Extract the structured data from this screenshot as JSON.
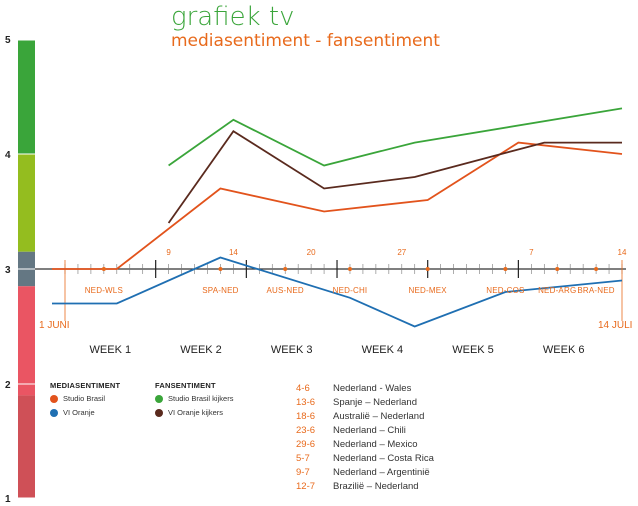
{
  "title": "grafiek tv",
  "subtitle": "mediasentiment - fansentiment",
  "chart_data": {
    "type": "line",
    "title": "grafiek tv",
    "subtitle": "mediasentiment - fansentiment",
    "y_scale_labels": [
      "5",
      "4",
      "3",
      "2",
      "1"
    ],
    "ylim": [
      1,
      5
    ],
    "x_range_days": [
      0,
      43
    ],
    "start_label": "1 JUNI",
    "end_label": "14 JULI",
    "weeks": [
      "WEEK 1",
      "WEEK 2",
      "WEEK 3",
      "WEEK 4",
      "WEEK 5",
      "WEEK 6"
    ],
    "match_dates": [
      {
        "label": "9",
        "day": 8
      },
      {
        "label": "14",
        "day": 13
      },
      {
        "label": "20",
        "day": 19
      },
      {
        "label": "27",
        "day": 26
      },
      {
        "label": "7",
        "day": 36
      },
      {
        "label": "14",
        "day": 43
      }
    ],
    "match_markers": [
      {
        "label": "NED-WLS",
        "day": 3
      },
      {
        "label": "SPA-NED",
        "day": 12
      },
      {
        "label": "AUS-NED",
        "day": 17
      },
      {
        "label": "NED-CHI",
        "day": 22
      },
      {
        "label": "NED-MEX",
        "day": 28
      },
      {
        "label": "NED-COS",
        "day": 34
      },
      {
        "label": "NED-ARG",
        "day": 38
      },
      {
        "label": "BRA-NED",
        "day": 41
      }
    ],
    "series": [
      {
        "name": "Studio Brasil",
        "group": "mediasentiment",
        "color": "#e2531c",
        "points": [
          [
            -1,
            3.0
          ],
          [
            4,
            3.0
          ],
          [
            12,
            3.7
          ],
          [
            20,
            3.5
          ],
          [
            28,
            3.6
          ],
          [
            35,
            4.1
          ],
          [
            43,
            4.0
          ]
        ]
      },
      {
        "name": "VI Oranje",
        "group": "mediasentiment",
        "color": "#1f6fb2",
        "points": [
          [
            -1,
            2.7
          ],
          [
            4,
            2.7
          ],
          [
            12,
            3.1
          ],
          [
            22,
            2.75
          ],
          [
            27,
            2.5
          ],
          [
            34,
            2.8
          ],
          [
            43,
            2.9
          ]
        ]
      },
      {
        "name": "Studio Brasil kijkers",
        "group": "fansentiment",
        "color": "#3aa53a",
        "points": [
          [
            8,
            3.9
          ],
          [
            13,
            4.3
          ],
          [
            20,
            3.9
          ],
          [
            27,
            4.1
          ],
          [
            43,
            4.4
          ]
        ]
      },
      {
        "name": "VI Oranje kijkers",
        "group": "fansentiment",
        "color": "#5a2a1e",
        "points": [
          [
            8,
            3.4
          ],
          [
            13,
            4.2
          ],
          [
            20,
            3.7
          ],
          [
            27,
            3.8
          ],
          [
            37,
            4.1
          ],
          [
            43,
            4.1
          ]
        ]
      }
    ],
    "scale_bar_colors": [
      "#3aa53a",
      "#94bd1f",
      "#647783",
      "#ea5563",
      "#cf5057"
    ]
  },
  "legend": {
    "media_title": "MEDIASENTIMENT",
    "fans_title": "FANSENTIMENT",
    "media": [
      {
        "label": "Studio Brasil",
        "color": "#e2531c"
      },
      {
        "label": "VI Oranje",
        "color": "#1f6fb2"
      }
    ],
    "fans": [
      {
        "label": "Studio Brasil kijkers",
        "color": "#3aa53a"
      },
      {
        "label": "VI Oranje kijkers",
        "color": "#5a2a1e"
      }
    ]
  },
  "matches": [
    {
      "date": "4-6",
      "label": "Nederland - Wales"
    },
    {
      "date": "13-6",
      "label": "Spanje – Nederland"
    },
    {
      "date": "18-6",
      "label": "Australië – Nederland"
    },
    {
      "date": "23-6",
      "label": "Nederland – Chili"
    },
    {
      "date": "29-6",
      "label": "Nederland – Mexico"
    },
    {
      "date": "5-7",
      "label": "Nederland – Costa Rica"
    },
    {
      "date": "9-7",
      "label": "Nederland – Argentinië"
    },
    {
      "date": "12-7",
      "label": "Brazilië – Nederland"
    }
  ]
}
